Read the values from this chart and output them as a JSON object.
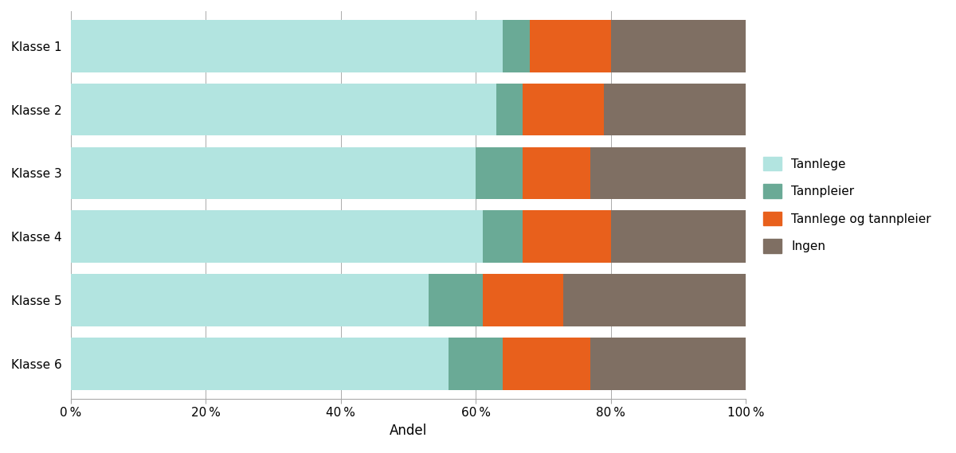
{
  "categories": [
    "Klasse 1",
    "Klasse 2",
    "Klasse 3",
    "Klasse 4",
    "Klasse 5",
    "Klasse 6"
  ],
  "series": {
    "Tannlege": [
      64,
      63,
      60,
      61,
      53,
      56
    ],
    "Tannpleier": [
      4,
      4,
      7,
      6,
      8,
      8
    ],
    "Tannlege og tannpleier": [
      12,
      12,
      10,
      13,
      12,
      13
    ],
    "Ingen": [
      20,
      21,
      23,
      20,
      27,
      23
    ]
  },
  "colors": {
    "Tannlege": "#b2e4e0",
    "Tannpleier": "#6aaa96",
    "Tannlege og tannpleier": "#e8601c",
    "Ingen": "#7f6f63"
  },
  "xlabel": "Andel",
  "xlim": [
    0,
    100
  ],
  "xtick_values": [
    0,
    20,
    40,
    60,
    80,
    100
  ],
  "xtick_labels": [
    "0 %",
    "20 %",
    "40 %",
    "60 %",
    "80 %",
    "100 %"
  ],
  "background_color": "#ffffff",
  "bar_height": 0.82,
  "legend_order": [
    "Tannlege",
    "Tannpleier",
    "Tannlege og tannpleier",
    "Ingen"
  ]
}
